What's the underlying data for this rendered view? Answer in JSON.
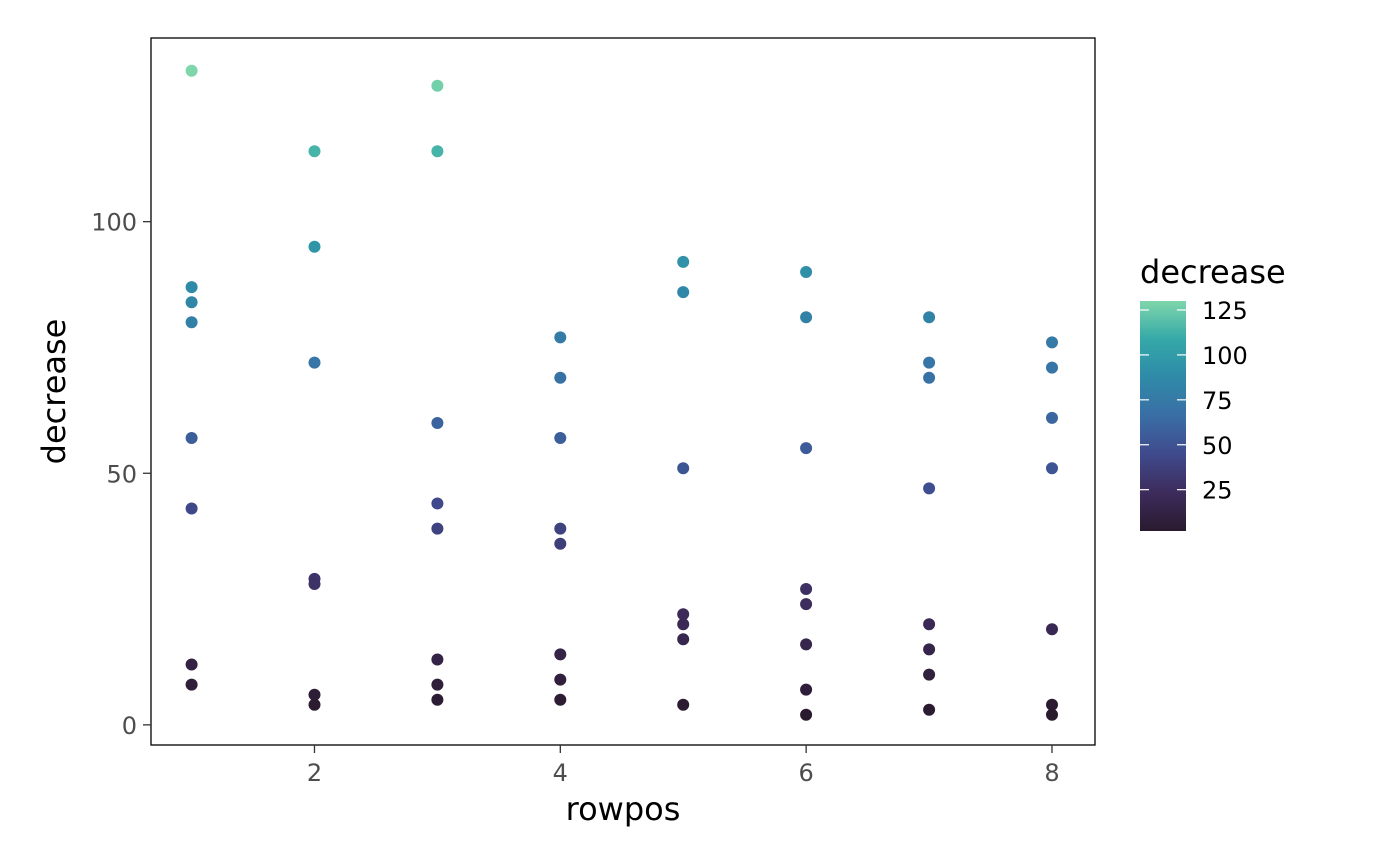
{
  "chart_data": {
    "type": "scatter",
    "xlabel": "rowpos",
    "ylabel": "decrease",
    "xlim": [
      0.67,
      8.35
    ],
    "ylim": [
      -4,
      136.5
    ],
    "xticks": [
      2,
      4,
      6,
      8
    ],
    "yticks": [
      0,
      50,
      100
    ],
    "grid": false,
    "legend": {
      "title": "decrease",
      "position": "right",
      "breaks": [
        125,
        100,
        75,
        50,
        25
      ],
      "range": [
        2,
        130
      ],
      "colors": [
        "#2a1a2e",
        "#3d2c5c",
        "#3f4a8c",
        "#3a6ea5",
        "#2f8aa8",
        "#34a8a8",
        "#7fd6ab"
      ]
    },
    "points": [
      {
        "x": 1,
        "y": 130
      },
      {
        "x": 1,
        "y": 87
      },
      {
        "x": 1,
        "y": 84
      },
      {
        "x": 1,
        "y": 80
      },
      {
        "x": 1,
        "y": 57
      },
      {
        "x": 1,
        "y": 43
      },
      {
        "x": 1,
        "y": 12
      },
      {
        "x": 1,
        "y": 8
      },
      {
        "x": 2,
        "y": 114
      },
      {
        "x": 2,
        "y": 95
      },
      {
        "x": 2,
        "y": 72
      },
      {
        "x": 2,
        "y": 29
      },
      {
        "x": 2,
        "y": 28
      },
      {
        "x": 2,
        "y": 6
      },
      {
        "x": 2,
        "y": 4
      },
      {
        "x": 3,
        "y": 127
      },
      {
        "x": 3,
        "y": 114
      },
      {
        "x": 3,
        "y": 60
      },
      {
        "x": 3,
        "y": 44
      },
      {
        "x": 3,
        "y": 39
      },
      {
        "x": 3,
        "y": 13
      },
      {
        "x": 3,
        "y": 8
      },
      {
        "x": 3,
        "y": 5
      },
      {
        "x": 4,
        "y": 77
      },
      {
        "x": 4,
        "y": 69
      },
      {
        "x": 4,
        "y": 57
      },
      {
        "x": 4,
        "y": 39
      },
      {
        "x": 4,
        "y": 36
      },
      {
        "x": 4,
        "y": 14
      },
      {
        "x": 4,
        "y": 9
      },
      {
        "x": 4,
        "y": 5
      },
      {
        "x": 5,
        "y": 92
      },
      {
        "x": 5,
        "y": 86
      },
      {
        "x": 5,
        "y": 51
      },
      {
        "x": 5,
        "y": 22
      },
      {
        "x": 5,
        "y": 20
      },
      {
        "x": 5,
        "y": 17
      },
      {
        "x": 5,
        "y": 4
      },
      {
        "x": 6,
        "y": 90
      },
      {
        "x": 6,
        "y": 81
      },
      {
        "x": 6,
        "y": 55
      },
      {
        "x": 6,
        "y": 27
      },
      {
        "x": 6,
        "y": 24
      },
      {
        "x": 6,
        "y": 16
      },
      {
        "x": 6,
        "y": 7
      },
      {
        "x": 6,
        "y": 2
      },
      {
        "x": 7,
        "y": 81
      },
      {
        "x": 7,
        "y": 72
      },
      {
        "x": 7,
        "y": 69
      },
      {
        "x": 7,
        "y": 47
      },
      {
        "x": 7,
        "y": 20
      },
      {
        "x": 7,
        "y": 15
      },
      {
        "x": 7,
        "y": 10
      },
      {
        "x": 7,
        "y": 3
      },
      {
        "x": 8,
        "y": 76
      },
      {
        "x": 8,
        "y": 71
      },
      {
        "x": 8,
        "y": 61
      },
      {
        "x": 8,
        "y": 51
      },
      {
        "x": 8,
        "y": 19
      },
      {
        "x": 8,
        "y": 4
      },
      {
        "x": 8,
        "y": 2
      }
    ]
  }
}
